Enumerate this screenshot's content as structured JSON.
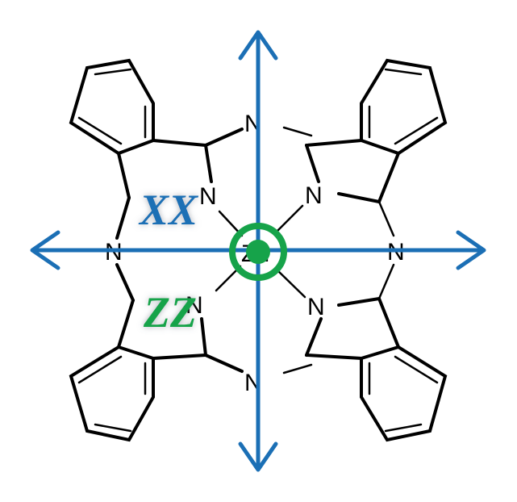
{
  "molecule": {
    "metal": "Zn",
    "nitrogen": "N"
  },
  "labels": {
    "axis_upper": "XX",
    "axis_lower": "ZZ"
  },
  "colors": {
    "axis": "#1b6fb5",
    "center_marker": "#16a34a",
    "label_upper": "#1b6fb5",
    "label_lower": "#16a34a",
    "bonds": "#000000"
  }
}
